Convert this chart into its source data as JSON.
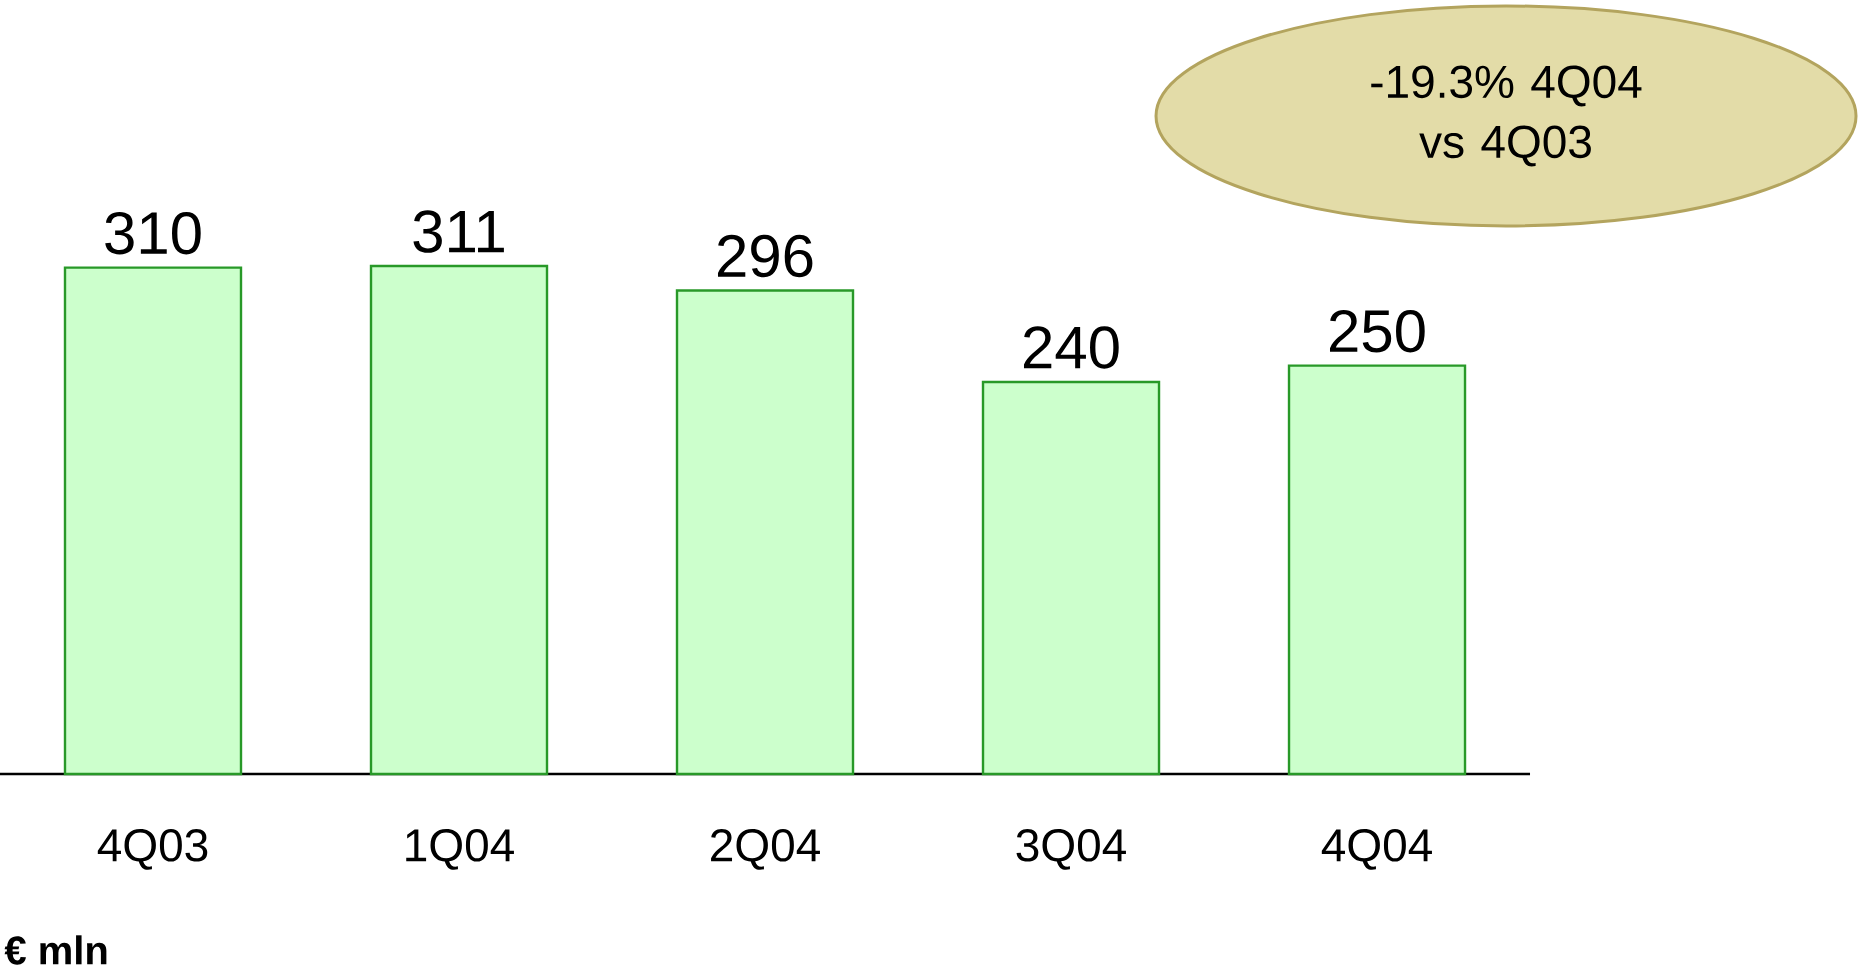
{
  "chart_data": {
    "type": "bar",
    "categories": [
      "4Q03",
      "1Q04",
      "2Q04",
      "3Q04",
      "4Q04"
    ],
    "values": [
      310,
      311,
      296,
      240,
      250
    ],
    "color": "#ccffcc",
    "data_labels": true,
    "annotations": [
      "-19.3% 4Q04 vs 4Q03",
      "**€ mln**"
    ]
  }
}
